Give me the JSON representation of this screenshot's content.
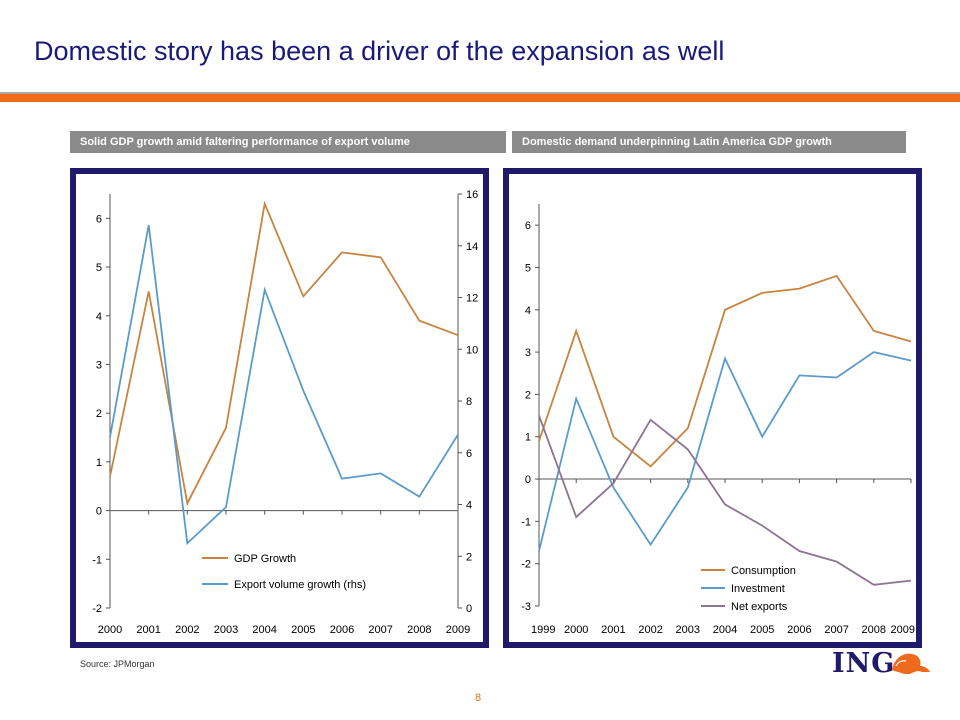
{
  "slide": {
    "title": "Domestic story has been a driver of the expansion as well",
    "left_header": "Solid GDP growth amid faltering performance of export volume",
    "right_header": "Domestic demand underpinning Latin America GDP growth",
    "source": "Source: JPMorgan",
    "page_number": "8",
    "logo_text": "ING",
    "colors": {
      "title": "#1a1a7a",
      "accent": "#ee6a1c",
      "frame": "#1f1a6b",
      "header_bg": "#8a8a8a"
    }
  },
  "chart_data": [
    {
      "type": "line",
      "x": [
        "2000",
        "2001",
        "2002",
        "2003",
        "2004",
        "2005",
        "2006",
        "2007",
        "2008",
        "2009"
      ],
      "ylim": [
        -2,
        6.5
      ],
      "yticks": [
        -2,
        -1,
        0,
        1,
        2,
        3,
        4,
        5,
        6
      ],
      "y2lim": [
        0,
        16
      ],
      "y2ticks": [
        0,
        2,
        4,
        6,
        8,
        10,
        12,
        14,
        16
      ],
      "series": [
        {
          "name": "GDP Growth",
          "axis": "left",
          "color": "#c8843f",
          "values": [
            0.7,
            4.5,
            0.15,
            1.7,
            6.3,
            4.4,
            5.3,
            5.2,
            3.9,
            3.6
          ]
        },
        {
          "name": "Export volume growth (rhs)",
          "axis": "right",
          "color": "#5b9bc9",
          "values": [
            6.6,
            14.8,
            2.5,
            3.9,
            12.3,
            8.4,
            5.0,
            5.2,
            4.3,
            6.7
          ]
        }
      ],
      "legend": "bottom-right"
    },
    {
      "type": "line",
      "x": [
        "1999",
        "2000",
        "2001",
        "2002",
        "2003",
        "2004",
        "2005",
        "2006",
        "2007",
        "2008",
        "2009"
      ],
      "ylim": [
        -3,
        6.5
      ],
      "yticks": [
        -3,
        -2,
        -1,
        0,
        1,
        2,
        3,
        4,
        5,
        6
      ],
      "series": [
        {
          "name": "Consumption",
          "color": "#c8843f",
          "values": [
            0.9,
            3.5,
            1.0,
            0.3,
            1.2,
            4.0,
            4.4,
            4.5,
            4.8,
            3.5,
            3.25
          ]
        },
        {
          "name": "Investment",
          "color": "#5b9bc9",
          "values": [
            -1.7,
            1.9,
            -0.2,
            -1.55,
            -0.2,
            2.85,
            1.0,
            2.45,
            2.4,
            3.0,
            2.8
          ]
        },
        {
          "name": "Net exports",
          "color": "#8e7392",
          "values": [
            1.5,
            -0.9,
            -0.1,
            1.4,
            0.7,
            -0.6,
            -1.1,
            -1.7,
            -1.95,
            -2.5,
            -2.4
          ]
        }
      ],
      "legend": "bottom-right"
    }
  ]
}
